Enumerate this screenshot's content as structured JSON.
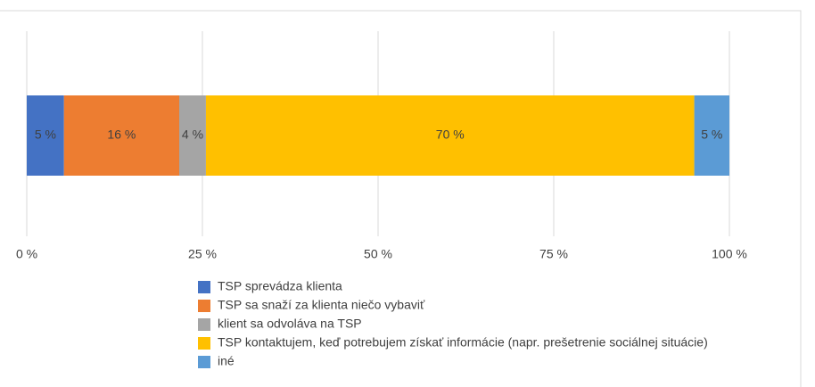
{
  "chart_data": {
    "type": "bar",
    "orientation": "horizontal",
    "stacked": true,
    "series": [
      {
        "name": "TSP sprevádza klienta",
        "color": "#4472c4",
        "values": [
          5.3
        ],
        "value_labels": [
          "5 %"
        ]
      },
      {
        "name": "TSP sa snaží za klienta niečo vybaviť",
        "color": "#ed7d31",
        "values": [
          16.4
        ],
        "value_labels": [
          "16 %"
        ]
      },
      {
        "name": "klient sa odvoláva na TSP",
        "color": "#a5a5a5",
        "values": [
          3.8
        ],
        "value_labels": [
          "4 %"
        ]
      },
      {
        "name": "TSP kontaktujem, keď potrebujem získať informácie (napr. prešetrenie sociálnej situácie)",
        "color": "#ffc000",
        "values": [
          69.5
        ],
        "value_labels": [
          "70 %"
        ]
      },
      {
        "name": "iné",
        "color": "#5b9bd5",
        "values": [
          5.0
        ],
        "value_labels": [
          "5 %"
        ]
      }
    ],
    "xlim": [
      0,
      100
    ],
    "xticks": [
      {
        "value": 0,
        "label": "0 %"
      },
      {
        "value": 25,
        "label": "25 %"
      },
      {
        "value": 50,
        "label": "50 %"
      },
      {
        "value": 75,
        "label": "75 %"
      },
      {
        "value": 100,
        "label": "100 %"
      }
    ],
    "grid": true,
    "legend": "bottom"
  }
}
